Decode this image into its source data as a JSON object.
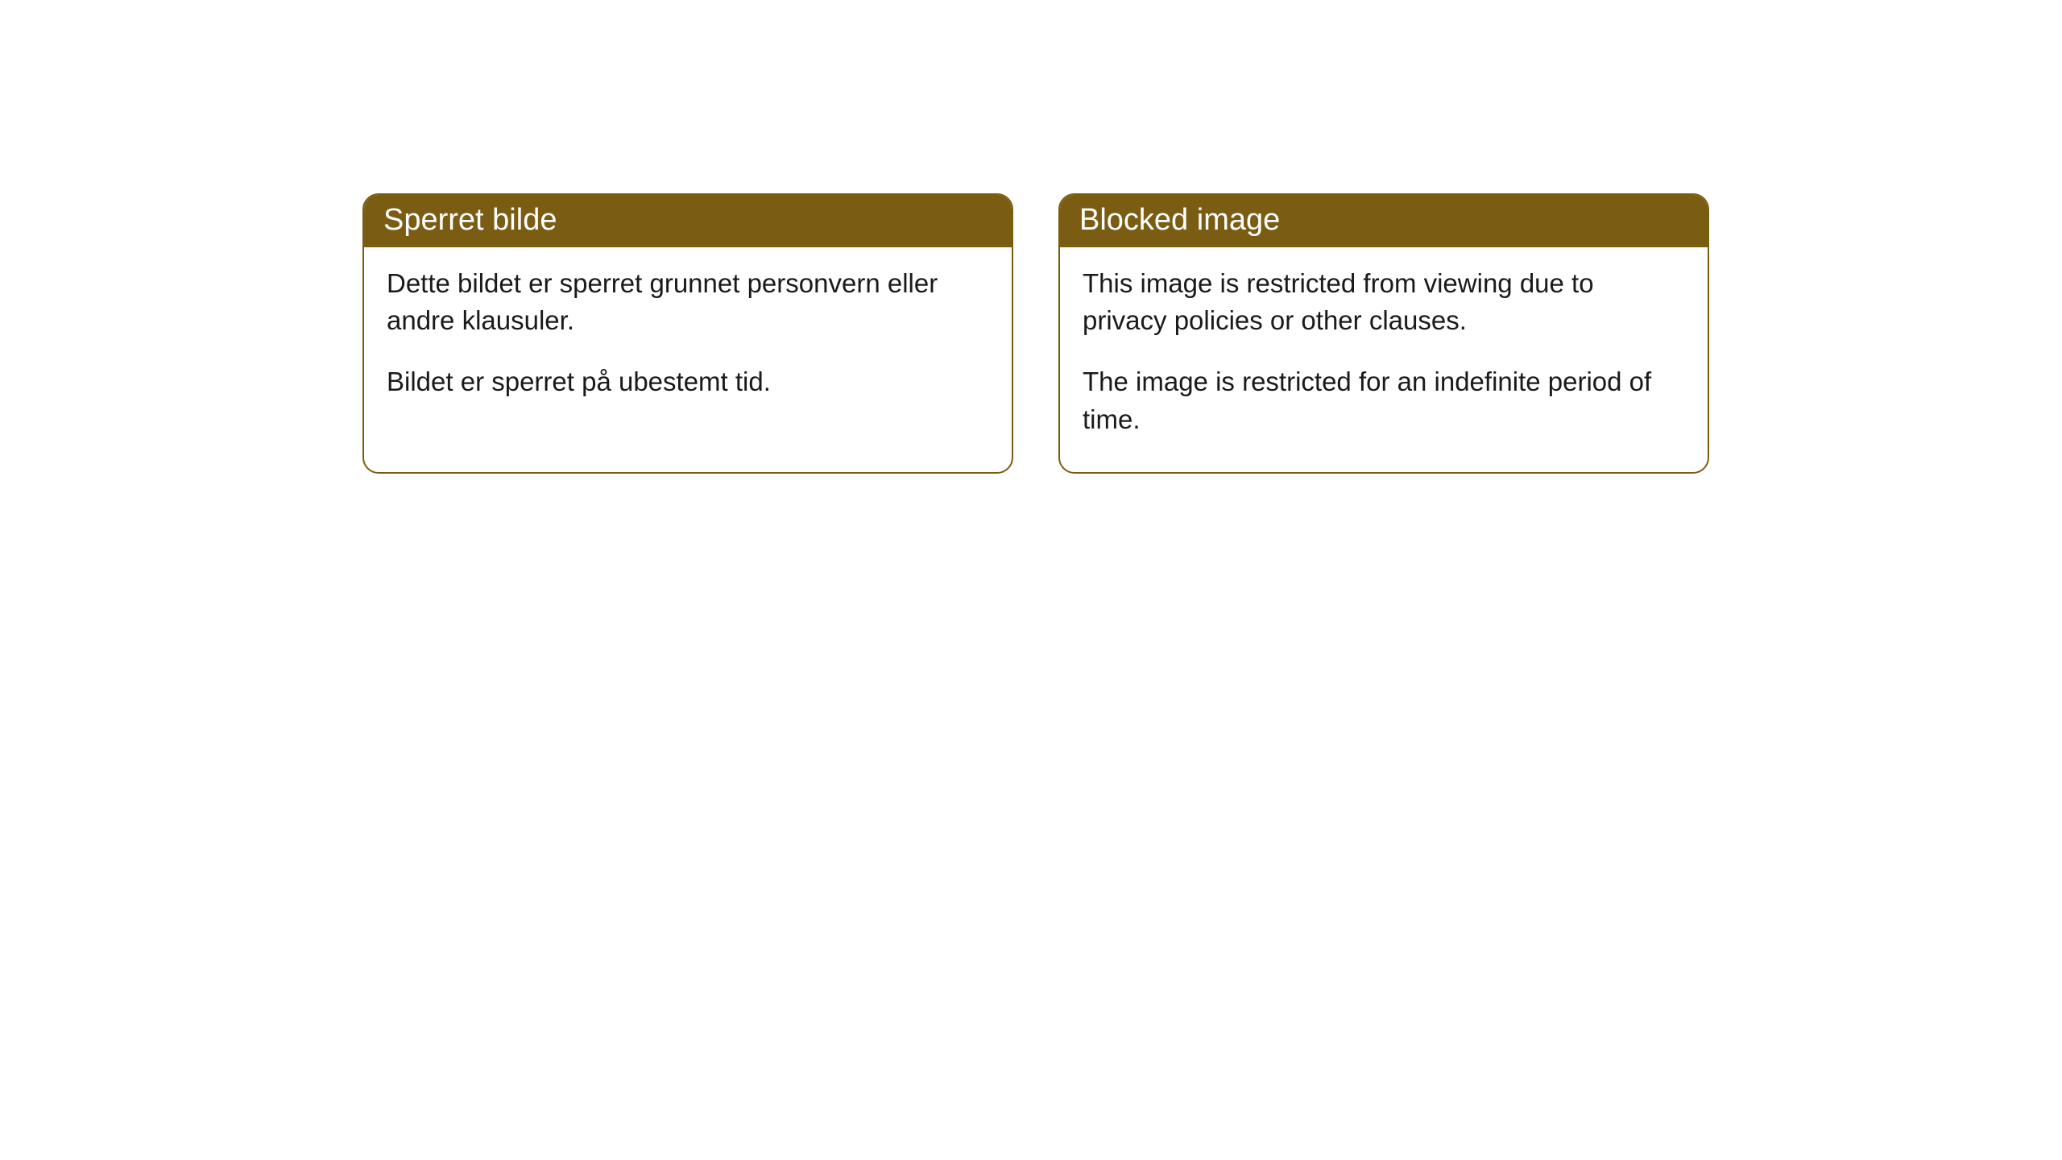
{
  "cards": [
    {
      "title": "Sperret bilde",
      "paragraph1": "Dette bildet er sperret grunnet personvern eller andre klausuler.",
      "paragraph2": "Bildet er sperret på ubestemt tid."
    },
    {
      "title": "Blocked image",
      "paragraph1": "This image is restricted from viewing due to privacy policies or other clauses.",
      "paragraph2": "The image is restricted for an indefinite period of time."
    }
  ],
  "styling": {
    "header_background_color": "#7a5d13",
    "header_text_color": "#ffffff",
    "border_color": "#7a5d13",
    "body_text_color": "#1a1a1a",
    "card_background_color": "#ffffff",
    "page_background_color": "#ffffff",
    "border_radius": 20,
    "title_fontsize": 38,
    "body_fontsize": 33
  }
}
